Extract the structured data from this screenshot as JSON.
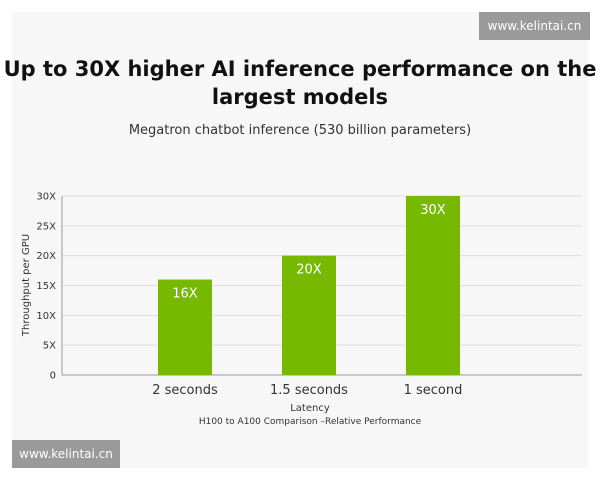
{
  "watermark": {
    "top": "www.kelintai.cn",
    "bottom": "www.kelintai.cn"
  },
  "chart_data": {
    "type": "bar",
    "title": "Up to 30X higher AI inference performance on the largest models",
    "title_lines": [
      "Up to 30X higher AI inference performance on the",
      "largest models"
    ],
    "subtitle": "Megatron chatbot inference (530 billion parameters)",
    "xlabel": "Latency",
    "xlabel_sub": "H100 to A100 Comparison –Relative Performance",
    "ylabel": "Throughput per GPU",
    "categories": [
      "2 seconds",
      "1.5 seconds",
      "1 second"
    ],
    "values": [
      16,
      20,
      30
    ],
    "data_labels": [
      "16X",
      "20X",
      "30X"
    ],
    "ylim": [
      0,
      30
    ],
    "yticks": [
      0,
      5,
      10,
      15,
      20,
      25,
      30
    ],
    "ytick_labels": [
      "0",
      "5X",
      "10X",
      "15X",
      "20X",
      "25X",
      "30X"
    ],
    "grid": true,
    "legend": "none",
    "colors": {
      "bar": "#76b900",
      "bar_label": "#ffffff",
      "grid": "#dddddd",
      "axis": "#999999",
      "text": "#333333"
    }
  }
}
